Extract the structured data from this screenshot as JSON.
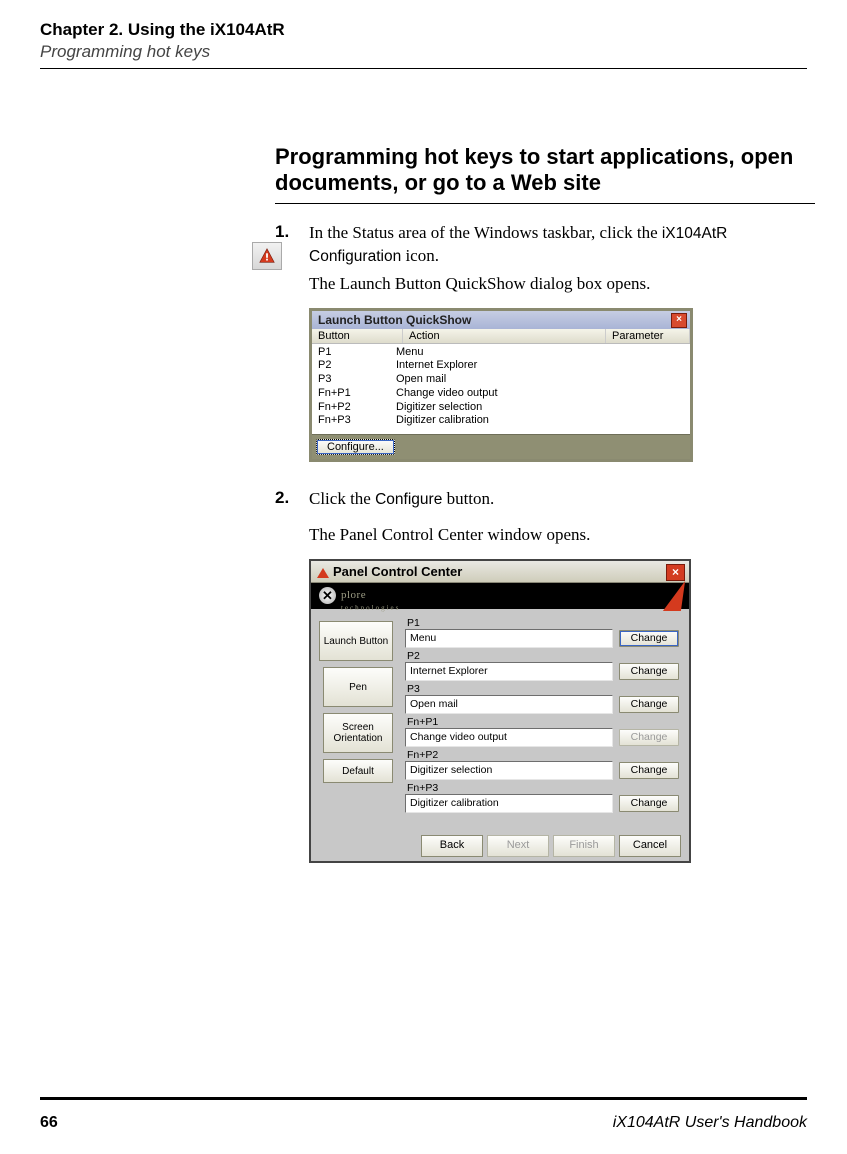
{
  "header": {
    "chapter": "Chapter 2. Using the iX104AtR",
    "section": "Programming hot keys"
  },
  "heading": "Programming hot keys to start applications, open documents, or go to a Web site",
  "step1": {
    "num": "1.",
    "text_a": "In the Status area of the Windows taskbar, click the ",
    "text_b_sans": "iX104AtR Configuration",
    "text_c": " icon.",
    "follow": "The Launch Button QuickShow dialog box opens."
  },
  "step2": {
    "num": "2.",
    "text_a": "Click the ",
    "text_b_sans": "Configure",
    "text_c": " button.",
    "follow": "The Panel Control Center window opens."
  },
  "quickshow": {
    "title": "Launch Button QuickShow",
    "columns": {
      "c1": "Button",
      "c2": "Action",
      "c3": "Parameter"
    },
    "col_widths": {
      "c1": 78,
      "c2": 190,
      "c3": 88
    },
    "rows": [
      {
        "b": "P1",
        "a": "Menu"
      },
      {
        "b": "P2",
        "a": "Internet Explorer"
      },
      {
        "b": "P3",
        "a": "Open mail"
      },
      {
        "b": "Fn+P1",
        "a": "Change video output"
      },
      {
        "b": "Fn+P2",
        "a": "Digitizer selection"
      },
      {
        "b": "Fn+P3",
        "a": "Digitizer calibration"
      }
    ],
    "configure": "Configure..."
  },
  "pcc": {
    "title": "Panel Control Center",
    "brand": "plore",
    "brand_sub": "technologies",
    "tabs": {
      "t1": "Launch Button",
      "t2": "Pen",
      "t3": "Screen Orientation",
      "t4": "Default"
    },
    "items": [
      {
        "label": "P1",
        "value": "Menu",
        "change": "Change",
        "selected": true,
        "disabled": false
      },
      {
        "label": "P2",
        "value": "Internet Explorer",
        "change": "Change",
        "selected": false,
        "disabled": false
      },
      {
        "label": "P3",
        "value": "Open mail",
        "change": "Change",
        "selected": false,
        "disabled": false
      },
      {
        "label": "Fn+P1",
        "value": "Change video output",
        "change": "Change",
        "selected": false,
        "disabled": true
      },
      {
        "label": "Fn+P2",
        "value": "Digitizer selection",
        "change": "Change",
        "selected": false,
        "disabled": false
      },
      {
        "label": "Fn+P3",
        "value": "Digitizer calibration",
        "change": "Change",
        "selected": false,
        "disabled": false
      }
    ],
    "nav": {
      "back": "Back",
      "next": "Next",
      "finish": "Finish",
      "cancel": "Cancel"
    }
  },
  "footer": {
    "page": "66",
    "book": "iX104AtR User's Handbook"
  },
  "colors": {
    "olive": "#8f8f73",
    "red": "#d43a1e",
    "titlebar_grad_a": "#c6cde3",
    "titlebar_grad_b": "#a9b4d6",
    "panel_bg": "#c8c8c8"
  },
  "typography": {
    "body_serif": "Times New Roman",
    "ui_sans": "Tahoma",
    "heading_fontsize_pt": 16,
    "body_fontsize_pt": 12.5,
    "ui_fontsize_pt": 8
  }
}
